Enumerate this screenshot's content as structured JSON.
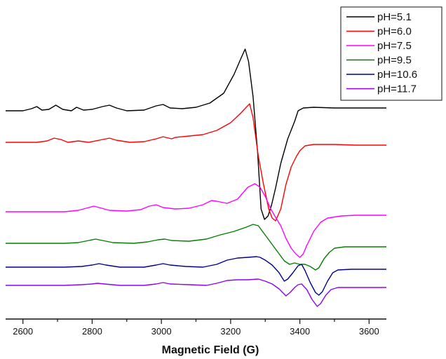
{
  "chart_data": {
    "type": "line",
    "title": "",
    "xlabel": "Magnetic Field (G)",
    "ylabel": "",
    "xlim": [
      2550,
      3650
    ],
    "x_ticks": [
      2600,
      2800,
      3000,
      3200,
      3400,
      3600
    ],
    "y_axis_shown": false,
    "grid": false,
    "legend_position": "top-right",
    "series": [
      {
        "name": "pH=5.1",
        "color": "#000000",
        "offset": 158,
        "points": [
          [
            2550,
            0
          ],
          [
            2600,
            0
          ],
          [
            2625,
            -3
          ],
          [
            2640,
            -6
          ],
          [
            2655,
            -1
          ],
          [
            2675,
            -2
          ],
          [
            2695,
            -8
          ],
          [
            2715,
            -2
          ],
          [
            2740,
            0
          ],
          [
            2755,
            -5
          ],
          [
            2775,
            -1
          ],
          [
            2800,
            -2
          ],
          [
            2830,
            -6
          ],
          [
            2850,
            -8
          ],
          [
            2870,
            -4
          ],
          [
            2900,
            0
          ],
          [
            2950,
            -1
          ],
          [
            2985,
            -7
          ],
          [
            3005,
            -9
          ],
          [
            3025,
            -4
          ],
          [
            3060,
            -3
          ],
          [
            3100,
            -5
          ],
          [
            3140,
            -11
          ],
          [
            3180,
            -25
          ],
          [
            3210,
            -52
          ],
          [
            3230,
            -75
          ],
          [
            3242,
            -88
          ],
          [
            3252,
            -70
          ],
          [
            3265,
            -20
          ],
          [
            3278,
            60
          ],
          [
            3288,
            140
          ],
          [
            3298,
            155
          ],
          [
            3308,
            150
          ],
          [
            3318,
            135
          ],
          [
            3330,
            110
          ],
          [
            3345,
            75
          ],
          [
            3365,
            40
          ],
          [
            3385,
            15
          ],
          [
            3395,
            0
          ],
          [
            3410,
            -4
          ],
          [
            3440,
            -5
          ],
          [
            3500,
            -4
          ],
          [
            3560,
            -4
          ],
          [
            3650,
            -4
          ]
        ]
      },
      {
        "name": "pH=6.0",
        "color": "#ff0000",
        "offset": 203,
        "points": [
          [
            2550,
            0
          ],
          [
            2640,
            0
          ],
          [
            2670,
            -2
          ],
          [
            2690,
            -6
          ],
          [
            2710,
            -4
          ],
          [
            2730,
            0
          ],
          [
            2760,
            -2
          ],
          [
            2790,
            0
          ],
          [
            2830,
            -4
          ],
          [
            2850,
            -6
          ],
          [
            2870,
            -3
          ],
          [
            2910,
            0
          ],
          [
            2950,
            -1
          ],
          [
            2985,
            -5
          ],
          [
            3005,
            -8
          ],
          [
            3030,
            -5
          ],
          [
            3040,
            -7
          ],
          [
            3080,
            -9
          ],
          [
            3120,
            -11
          ],
          [
            3160,
            -17
          ],
          [
            3200,
            -28
          ],
          [
            3230,
            -42
          ],
          [
            3245,
            -50
          ],
          [
            3255,
            -55
          ],
          [
            3265,
            -35
          ],
          [
            3280,
            20
          ],
          [
            3295,
            60
          ],
          [
            3310,
            95
          ],
          [
            3320,
            108
          ],
          [
            3330,
            112
          ],
          [
            3345,
            95
          ],
          [
            3360,
            60
          ],
          [
            3375,
            35
          ],
          [
            3390,
            20
          ],
          [
            3400,
            12
          ],
          [
            3415,
            5
          ],
          [
            3440,
            3
          ],
          [
            3500,
            3
          ],
          [
            3560,
            4
          ],
          [
            3650,
            4
          ]
        ]
      },
      {
        "name": "pH=7.5",
        "color": "#ff00ff",
        "offset": 302,
        "points": [
          [
            2550,
            0
          ],
          [
            2720,
            0
          ],
          [
            2760,
            -2
          ],
          [
            2790,
            -6
          ],
          [
            2805,
            -8
          ],
          [
            2820,
            -6
          ],
          [
            2850,
            -2
          ],
          [
            2900,
            -1
          ],
          [
            2940,
            -3
          ],
          [
            2965,
            -8
          ],
          [
            2985,
            -10
          ],
          [
            3005,
            -6
          ],
          [
            3040,
            -4
          ],
          [
            3080,
            -5
          ],
          [
            3120,
            -10
          ],
          [
            3145,
            -16
          ],
          [
            3160,
            -15
          ],
          [
            3190,
            -12
          ],
          [
            3220,
            -18
          ],
          [
            3250,
            -35
          ],
          [
            3270,
            -40
          ],
          [
            3285,
            -35
          ],
          [
            3300,
            -22
          ],
          [
            3315,
            -5
          ],
          [
            3330,
            8
          ],
          [
            3345,
            20
          ],
          [
            3360,
            38
          ],
          [
            3375,
            52
          ],
          [
            3388,
            60
          ],
          [
            3400,
            65
          ],
          [
            3410,
            60
          ],
          [
            3420,
            48
          ],
          [
            3440,
            28
          ],
          [
            3460,
            15
          ],
          [
            3480,
            9
          ],
          [
            3520,
            6
          ],
          [
            3560,
            5
          ],
          [
            3650,
            5
          ]
        ]
      },
      {
        "name": "pH=9.5",
        "color": "#008000",
        "offset": 347,
        "points": [
          [
            2550,
            0
          ],
          [
            2720,
            0
          ],
          [
            2760,
            -1
          ],
          [
            2790,
            -4
          ],
          [
            2810,
            -6
          ],
          [
            2830,
            -4
          ],
          [
            2860,
            -1
          ],
          [
            2920,
            0
          ],
          [
            2960,
            -2
          ],
          [
            2990,
            -5
          ],
          [
            3010,
            -6
          ],
          [
            3030,
            -4
          ],
          [
            3080,
            -3
          ],
          [
            3130,
            -6
          ],
          [
            3170,
            -12
          ],
          [
            3210,
            -17
          ],
          [
            3245,
            -23
          ],
          [
            3265,
            -27
          ],
          [
            3280,
            -25
          ],
          [
            3295,
            -15
          ],
          [
            3310,
            -5
          ],
          [
            3325,
            5
          ],
          [
            3340,
            15
          ],
          [
            3355,
            25
          ],
          [
            3370,
            30
          ],
          [
            3385,
            28
          ],
          [
            3400,
            30
          ],
          [
            3415,
            30
          ],
          [
            3430,
            33
          ],
          [
            3445,
            38
          ],
          [
            3455,
            35
          ],
          [
            3470,
            22
          ],
          [
            3485,
            13
          ],
          [
            3500,
            7
          ],
          [
            3530,
            5
          ],
          [
            3560,
            5
          ],
          [
            3650,
            5
          ]
        ]
      },
      {
        "name": "pH=10.6",
        "color": "#00008b",
        "offset": 381,
        "points": [
          [
            2550,
            0
          ],
          [
            2720,
            0
          ],
          [
            2770,
            -1
          ],
          [
            2800,
            -3
          ],
          [
            2820,
            -5
          ],
          [
            2840,
            -3
          ],
          [
            2880,
            0
          ],
          [
            2950,
            0
          ],
          [
            2985,
            -3
          ],
          [
            3005,
            -5
          ],
          [
            3025,
            -3
          ],
          [
            3070,
            -1
          ],
          [
            3120,
            0
          ],
          [
            3160,
            -4
          ],
          [
            3190,
            -10
          ],
          [
            3220,
            -13
          ],
          [
            3250,
            -14
          ],
          [
            3275,
            -15
          ],
          [
            3285,
            -14
          ],
          [
            3300,
            -10
          ],
          [
            3320,
            -3
          ],
          [
            3340,
            8
          ],
          [
            3355,
            20
          ],
          [
            3365,
            17
          ],
          [
            3380,
            8
          ],
          [
            3395,
            -2
          ],
          [
            3405,
            -4
          ],
          [
            3415,
            5
          ],
          [
            3430,
            22
          ],
          [
            3445,
            36
          ],
          [
            3455,
            40
          ],
          [
            3465,
            35
          ],
          [
            3480,
            20
          ],
          [
            3495,
            8
          ],
          [
            3510,
            4
          ],
          [
            3550,
            3
          ],
          [
            3650,
            3
          ]
        ]
      },
      {
        "name": "pH=11.7",
        "color": "#8b00ff",
        "offset": 407,
        "points": [
          [
            2550,
            0
          ],
          [
            2720,
            0
          ],
          [
            2770,
            -1
          ],
          [
            2800,
            -2
          ],
          [
            2815,
            -3
          ],
          [
            2835,
            -2
          ],
          [
            2880,
            0
          ],
          [
            2950,
            0
          ],
          [
            2985,
            -2
          ],
          [
            3005,
            -4
          ],
          [
            3025,
            -2
          ],
          [
            3080,
            -1
          ],
          [
            3130,
            0
          ],
          [
            3160,
            -3
          ],
          [
            3190,
            -7
          ],
          [
            3220,
            -8
          ],
          [
            3250,
            -8
          ],
          [
            3280,
            -9
          ],
          [
            3300,
            -6
          ],
          [
            3320,
            -2
          ],
          [
            3340,
            5
          ],
          [
            3360,
            15
          ],
          [
            3372,
            10
          ],
          [
            3385,
            3
          ],
          [
            3395,
            -1
          ],
          [
            3405,
            -2
          ],
          [
            3420,
            6
          ],
          [
            3435,
            20
          ],
          [
            3450,
            30
          ],
          [
            3460,
            26
          ],
          [
            3475,
            14
          ],
          [
            3490,
            6
          ],
          [
            3510,
            3
          ],
          [
            3560,
            3
          ],
          [
            3650,
            3
          ]
        ]
      }
    ]
  }
}
